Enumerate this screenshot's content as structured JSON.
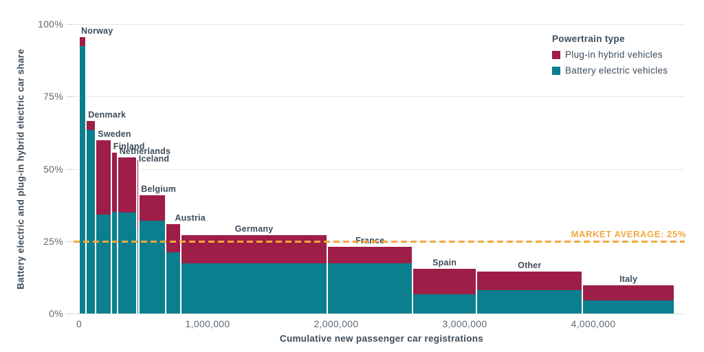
{
  "chart_data": {
    "type": "bar",
    "variant": "variable-width stacked bar (marimekko)",
    "title": "",
    "xlabel": "Cumulative new passenger car registrations",
    "ylabel": "Battery electric and plug-in hybrid electric car share",
    "ylim": [
      0,
      100
    ],
    "xlim": [
      0,
      4740000
    ],
    "grid": "horizontal",
    "y_ticks": [
      {
        "value": 0,
        "label": "0%"
      },
      {
        "value": 25,
        "label": "25%"
      },
      {
        "value": 50,
        "label": "50%"
      },
      {
        "value": 75,
        "label": "75%"
      },
      {
        "value": 100,
        "label": "100%"
      }
    ],
    "x_ticks": [
      {
        "value": 0,
        "label": "0"
      },
      {
        "value": 1000000,
        "label": "1,000,000"
      },
      {
        "value": 2000000,
        "label": "2,000,000"
      },
      {
        "value": 3000000,
        "label": "3,000,000"
      },
      {
        "value": 4000000,
        "label": "4,000,000"
      }
    ],
    "legend": {
      "title": "Powertrain type",
      "position": "top-right"
    },
    "categories": [
      "Norway",
      "Denmark",
      "Sweden",
      "Finland",
      "Netherlands",
      "Iceland",
      "Belgium",
      "Austria",
      "Germany",
      "France",
      "Spain",
      "Other",
      "Italy"
    ],
    "bar_widths": {
      "unit": "new passenger car registrations",
      "values": [
        55000,
        75000,
        120000,
        48000,
        150000,
        19000,
        209000,
        115000,
        1141000,
        662000,
        498000,
        824000,
        715000
      ]
    },
    "series": [
      {
        "name": "Plug-in hybrid vehicles",
        "color": "#9e1e47",
        "unit": "% share",
        "values": [
          3.0,
          3.1,
          25.7,
          20.4,
          19.2,
          23.8,
          8.7,
          9.7,
          9.7,
          5.6,
          8.9,
          6.6,
          5.1
        ]
      },
      {
        "name": "Battery electric vehicles",
        "color": "#0c7f8f",
        "unit": "% share",
        "values": [
          92.4,
          63.5,
          34.1,
          35.1,
          34.8,
          29.1,
          32.1,
          21.2,
          17.4,
          17.4,
          6.6,
          8.0,
          4.6
        ]
      }
    ],
    "market_average": {
      "label": "MARKET AVERAGE: 25%",
      "value": 25,
      "color": "#f3a73d",
      "line_style": "dashed"
    }
  }
}
